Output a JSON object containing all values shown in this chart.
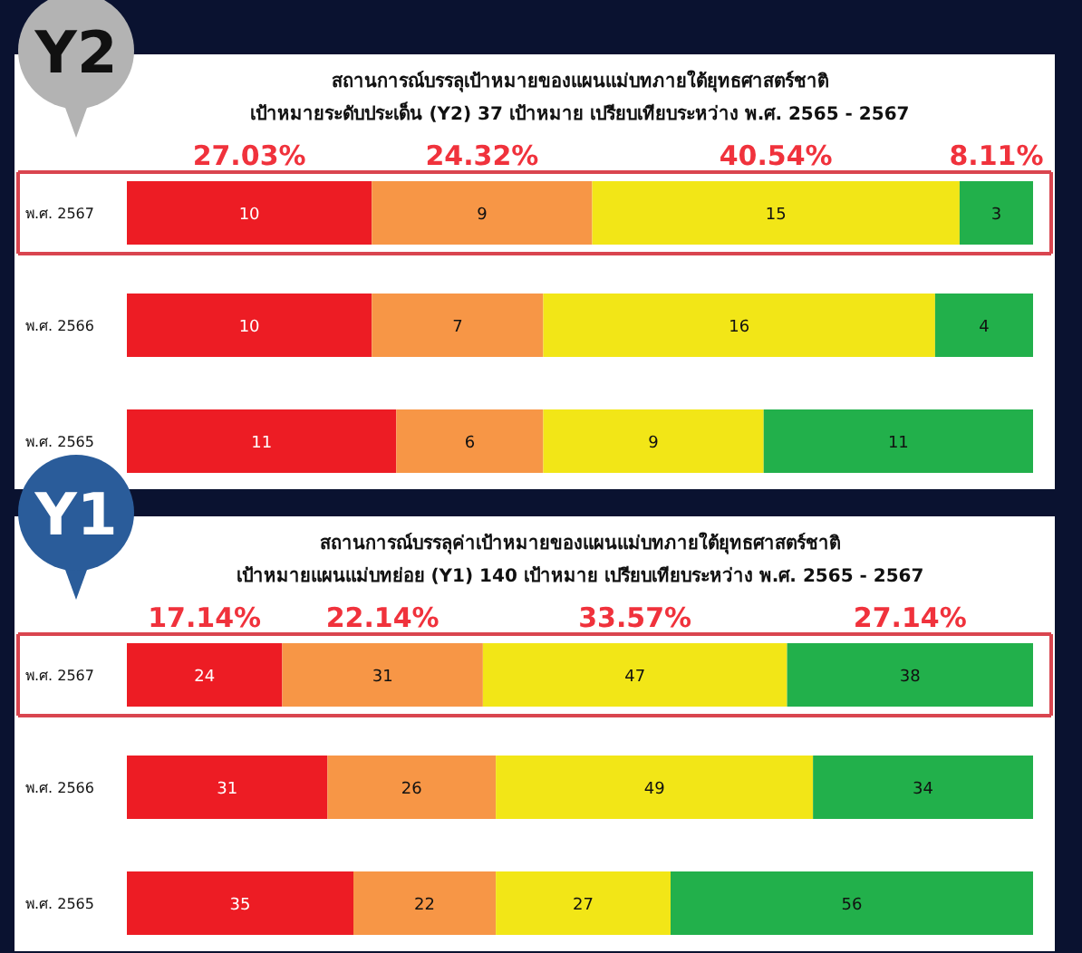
{
  "chart_data": [
    {
      "type": "bar",
      "orientation": "horizontal",
      "stacked": true,
      "data_labels": true,
      "title": "สถานการณ์บรรลุเป้าหมายของแผนแม่บทภายใต้ยุทธศาสตร์ชาติ",
      "subtitle": "เป้าหมายระดับประเด็น (Y2) 37 เป้าหมาย เปรียบเทียบระหว่าง พ.ศ. 2565 - 2567",
      "categories": [
        "พ.ศ. 2567",
        "พ.ศ. 2566",
        "พ.ศ. 2565"
      ],
      "xlim": [
        0,
        37
      ],
      "series": [
        {
          "color": "#ed1c24",
          "values": [
            10,
            10,
            11
          ]
        },
        {
          "color": "#f79646",
          "values": [
            9,
            7,
            6
          ]
        },
        {
          "color": "#f2e617",
          "values": [
            15,
            16,
            9
          ]
        },
        {
          "color": "#22b04b",
          "values": [
            3,
            4,
            11
          ]
        }
      ],
      "annotations": [
        "Y2",
        "27.03%",
        "24.32%",
        "40.54%",
        "8.11%"
      ]
    },
    {
      "type": "bar",
      "orientation": "horizontal",
      "stacked": true,
      "data_labels": true,
      "title": "สถานการณ์บรรลุค่าเป้าหมายของแผนแม่บทภายใต้ยุทธศาสตร์ชาติ",
      "subtitle": "เป้าหมายแผนแม่บทย่อย (Y1) 140 เป้าหมาย เปรียบเทียบระหว่าง พ.ศ. 2565 - 2567",
      "categories": [
        "พ.ศ. 2567",
        "พ.ศ. 2566",
        "พ.ศ. 2565"
      ],
      "xlim": [
        0,
        140
      ],
      "series": [
        {
          "color": "#ed1c24",
          "values": [
            24,
            31,
            35
          ]
        },
        {
          "color": "#f79646",
          "values": [
            31,
            26,
            22
          ]
        },
        {
          "color": "#f2e617",
          "values": [
            47,
            49,
            27
          ]
        },
        {
          "color": "#22b04b",
          "values": [
            38,
            34,
            56
          ]
        }
      ],
      "annotations": [
        "Y1",
        "17.14%",
        "22.14%",
        "33.57%",
        "27.14%"
      ]
    }
  ]
}
